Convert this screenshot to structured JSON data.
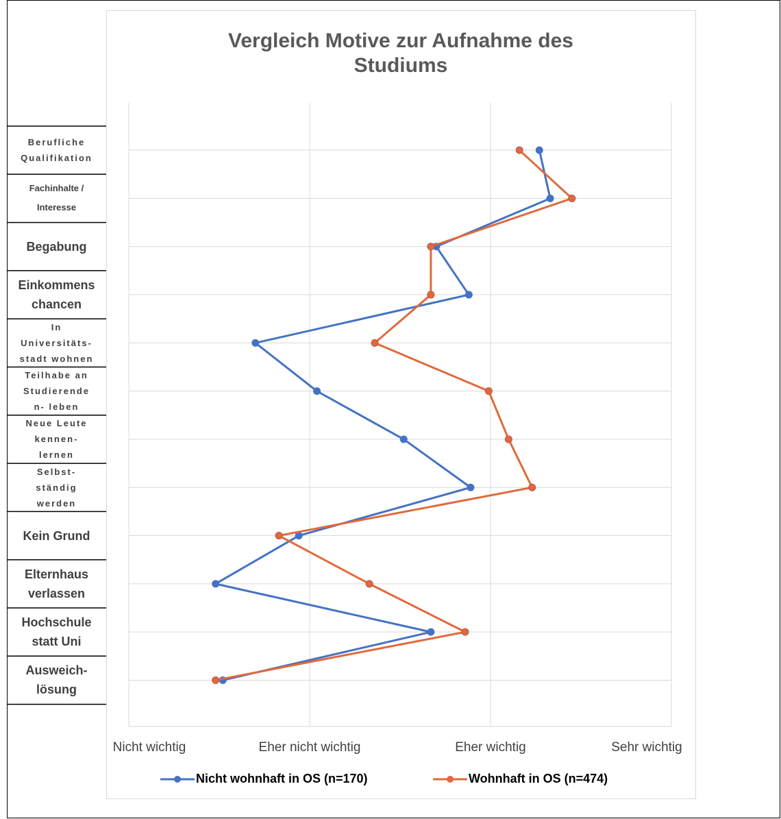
{
  "chart_data": {
    "type": "line",
    "title": "Vergleich Motive zur Aufnahme des Studiums",
    "categories": [
      "Berufliche\nQualifikation",
      "Fachinhalte /\nInteresse",
      "Begabung",
      "Einkommens\nchancen",
      "In\nUniversitäts-\nstadt wohnen",
      "Teilhabe an\nStudierende\nn- leben",
      "Neue Leute\nkennen-\nlernen",
      "Selbst-\nständig\nwerden",
      "Kein Grund",
      "Elternhaus\nverlassen",
      "Hochschule\nstatt Uni",
      "Ausweich-\nlösung"
    ],
    "series": [
      {
        "name": "Nicht wohnhaft in OS (n=170)",
        "color": "#4472c4",
        "values": [
          3.27,
          3.33,
          2.7,
          2.88,
          1.7,
          2.04,
          2.52,
          2.89,
          1.94,
          1.48,
          2.67,
          1.52
        ]
      },
      {
        "name": "Wohnhaft in OS (n=474)",
        "color": "#e06a3b",
        "values": [
          3.16,
          3.45,
          2.67,
          2.67,
          2.36,
          2.99,
          3.1,
          3.23,
          1.83,
          2.33,
          2.86,
          1.48
        ]
      }
    ],
    "xlim": [
      1,
      4
    ],
    "xticks": [
      {
        "value": 1,
        "label": "Nicht wichtig"
      },
      {
        "value": 2,
        "label": "Eher nicht wichtig"
      },
      {
        "value": 3,
        "label": "Eher wichtig"
      },
      {
        "value": 4,
        "label": "Sehr wichtig"
      }
    ],
    "grid": true,
    "legend": "bottom"
  }
}
